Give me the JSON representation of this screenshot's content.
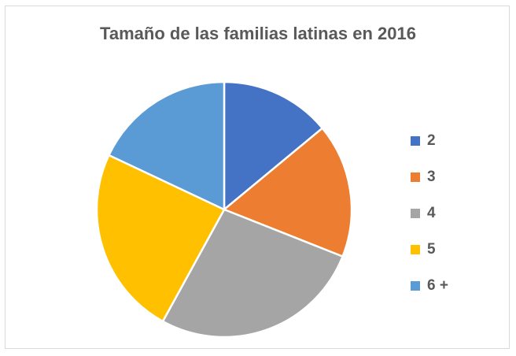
{
  "chart_data": {
    "type": "pie",
    "title": "Tamaño de las familias latinas en 2016",
    "categories": [
      "2",
      "3",
      "4",
      "5",
      "6 +"
    ],
    "values": [
      14,
      17,
      27,
      24,
      18
    ],
    "colors": [
      "#4472c4",
      "#ed7d31",
      "#a5a5a5",
      "#ffc000",
      "#5b9bd5"
    ],
    "legend_position": "right"
  }
}
